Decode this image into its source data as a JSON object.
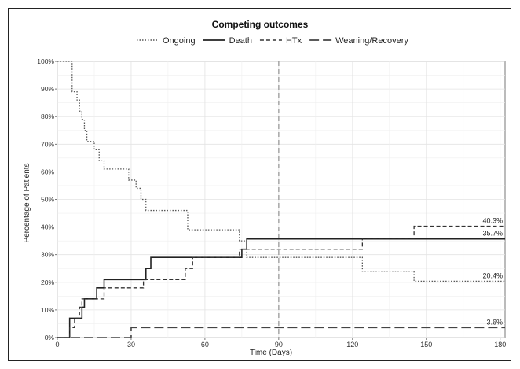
{
  "chart_data": {
    "type": "line",
    "title": "Competing outcomes",
    "xlabel": "Time (Days)",
    "ylabel": "Percentage of Patients",
    "xlim": [
      0,
      182
    ],
    "ylim": [
      0,
      100
    ],
    "x_ticks": [
      0,
      30,
      60,
      90,
      120,
      150,
      180
    ],
    "y_ticks": [
      0,
      10,
      20,
      30,
      40,
      50,
      60,
      70,
      80,
      90,
      100
    ],
    "x_tick_labels": [
      "0",
      "30",
      "60",
      "90",
      "120",
      "150",
      "180"
    ],
    "y_tick_labels": [
      "0%",
      "10%",
      "20%",
      "30%",
      "40%",
      "50%",
      "60%",
      "70%",
      "80%",
      "90%",
      "100%"
    ],
    "grid": true,
    "legend_position": "top",
    "reference_line": {
      "x": 90,
      "style": "dashed",
      "color": "#999999"
    },
    "series": [
      {
        "name": "Ongoing",
        "style": "dotted",
        "color": "#555555",
        "x": [
          0,
          6,
          7,
          8,
          9,
          10,
          11,
          12,
          13,
          15,
          17,
          19,
          29,
          30,
          32,
          34,
          36,
          38,
          53,
          55,
          74,
          77,
          124,
          145,
          182
        ],
        "y": [
          100,
          89,
          89,
          86,
          82,
          79,
          75,
          71,
          71,
          68,
          64,
          61,
          57,
          57,
          54,
          50,
          46,
          46,
          39,
          39,
          35,
          29,
          24,
          20.4,
          20.4
        ],
        "end_label": "20.4%"
      },
      {
        "name": "Death",
        "style": "solid",
        "color": "#222222",
        "x": [
          0,
          5,
          8,
          10,
          11,
          13,
          16,
          18,
          19,
          36,
          38,
          55,
          75,
          77,
          182
        ],
        "y": [
          0,
          7,
          7,
          11,
          14,
          14,
          18,
          18,
          21,
          25,
          29,
          29,
          32,
          35.7,
          35.7
        ],
        "end_label": "35.7%"
      },
      {
        "name": "HTx",
        "style": "dashed",
        "color": "#333333",
        "x": [
          0,
          5,
          7,
          8,
          9,
          10,
          12,
          14,
          16,
          19,
          35,
          37,
          52,
          55,
          74,
          77,
          124,
          145,
          182
        ],
        "y": [
          0,
          3.6,
          7,
          7,
          11,
          14,
          14,
          14,
          14,
          18,
          21,
          21,
          25,
          29,
          32,
          32,
          36,
          40.3,
          40.3
        ],
        "end_label": "40.3%"
      },
      {
        "name": "Weaning/Recovery",
        "style": "longdash",
        "color": "#444444",
        "x": [
          0,
          30,
          182
        ],
        "y": [
          0,
          3.6,
          3.6
        ],
        "end_label": "3.6%"
      }
    ]
  }
}
